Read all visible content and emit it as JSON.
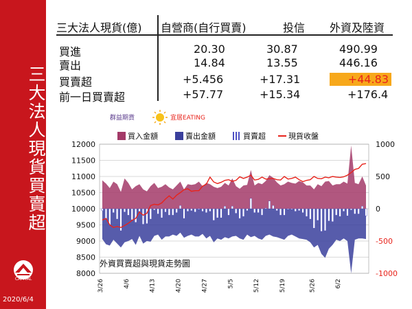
{
  "sidebar": {
    "title": "三大法人現貨買賣超",
    "logo_text": "CAPITAL",
    "date": "2020/6/4"
  },
  "table": {
    "headers": [
      "三大法人現貨(億)",
      "自營商(自行買賣)",
      "投信",
      "外資及陸資"
    ],
    "rows": [
      {
        "label": "買進",
        "values": [
          "20.30",
          "30.87",
          "490.99"
        ]
      },
      {
        "label": "賣出",
        "values": [
          "14.84",
          "13.55",
          "446.16"
        ]
      },
      {
        "label": "買賣超",
        "values": [
          "+5.456",
          "+17.31",
          "+44.83"
        ]
      },
      {
        "label": "前一日買賣超",
        "values": [
          "+57.77",
          "+15.34",
          "+176.4"
        ]
      }
    ]
  },
  "brand": {
    "left": "群益期貨",
    "right": "宜居EATING"
  },
  "colors": {
    "buy": "#a33a68",
    "sell": "#3a3f9c",
    "net": "#4d4fc4",
    "index": "#e8231b",
    "accent": "#c8161d",
    "highlight": "#f7a81b"
  },
  "chart_data": {
    "type": "combo",
    "title": "外資買賣超與現貨走勢圖",
    "legend": [
      "買入金額",
      "賣出金額",
      "買賣超",
      "現貨收盤"
    ],
    "x_ticks": [
      "3/26",
      "4/6",
      "4/13",
      "4/20",
      "4/27",
      "5/5",
      "5/12",
      "5/19",
      "5/26",
      "6/2"
    ],
    "y_left": {
      "min": 8000,
      "max": 12000,
      "ticks": [
        8000,
        8500,
        9000,
        9500,
        10000,
        10500,
        11000,
        11500,
        12000
      ]
    },
    "y_right": {
      "min": -1000,
      "max": 1000,
      "ticks": [
        -1000,
        -500,
        0,
        500,
        1000
      ]
    },
    "buy": [
      440,
      390,
      320,
      420,
      380,
      260,
      470,
      400,
      300,
      350,
      380,
      300,
      270,
      350,
      400,
      320,
      340,
      380,
      330,
      300,
      360,
      420,
      300,
      380,
      370,
      380,
      420,
      350,
      400,
      380,
      340,
      320,
      340,
      400,
      360,
      470,
      350,
      310,
      360,
      370,
      600,
      360,
      400,
      380,
      430,
      520,
      480,
      410,
      360,
      380,
      420,
      400,
      390,
      430,
      410,
      360,
      360,
      300,
      380,
      350,
      420,
      430,
      360,
      380,
      380,
      420,
      390,
      980,
      400,
      380,
      500,
      360
    ],
    "sell": [
      -470,
      -550,
      -570,
      -480,
      -540,
      -600,
      -520,
      -500,
      -470,
      -560,
      -420,
      -540,
      -500,
      -510,
      -420,
      -400,
      -480,
      -430,
      -430,
      -400,
      -420,
      -370,
      -450,
      -420,
      -400,
      -430,
      -430,
      -390,
      -460,
      -420,
      -520,
      -460,
      -480,
      -440,
      -460,
      -430,
      -420,
      -460,
      -480,
      -400,
      -440,
      -420,
      -460,
      -480,
      -420,
      -400,
      -430,
      -440,
      -460,
      -480,
      -420,
      -400,
      -430,
      -460,
      -470,
      -480,
      -520,
      -600,
      -560,
      -700,
      -760,
      -620,
      -560,
      -480,
      -500,
      -460,
      -500,
      -1000,
      -480,
      -460,
      -460,
      -470
    ],
    "net": [
      -30,
      -160,
      -250,
      -60,
      -160,
      -340,
      -50,
      -100,
      -170,
      -210,
      -40,
      -240,
      -230,
      -160,
      -20,
      -80,
      -140,
      -50,
      -100,
      -100,
      -60,
      50,
      -150,
      -40,
      -30,
      -50,
      -10,
      -40,
      -60,
      -40,
      -180,
      -140,
      -140,
      40,
      -100,
      40,
      -70,
      -150,
      -120,
      -30,
      160,
      -60,
      -60,
      -100,
      10,
      120,
      50,
      -30,
      -100,
      -100,
      0,
      0,
      -40,
      -30,
      -60,
      -120,
      -160,
      -300,
      -180,
      -350,
      -340,
      -190,
      -200,
      -100,
      -120,
      -40,
      -110,
      -20,
      -80,
      -80,
      40,
      -110
    ],
    "close": [
      9650,
      9700,
      9500,
      9420,
      9450,
      9420,
      9480,
      9550,
      9640,
      9700,
      9900,
      9800,
      9860,
      10100,
      10140,
      10120,
      10180,
      10300,
      10400,
      10300,
      10420,
      10500,
      10590,
      10620,
      10540,
      10560,
      10560,
      10700,
      10760,
      10980,
      10830,
      10780,
      10820,
      10880,
      10900,
      10850,
      10880,
      10990,
      10940,
      10980,
      11040,
      10890,
      10910,
      10980,
      10920,
      10930,
      10940,
      10900,
      10890,
      11000,
      10920,
      10940,
      10980,
      10900,
      10840,
      10880,
      10900,
      11000,
      10940,
      10930,
      10980,
      10960,
      11000,
      10980,
      10970,
      10990,
      11040,
      11120,
      11220,
      11250,
      11380,
      11400
    ]
  }
}
